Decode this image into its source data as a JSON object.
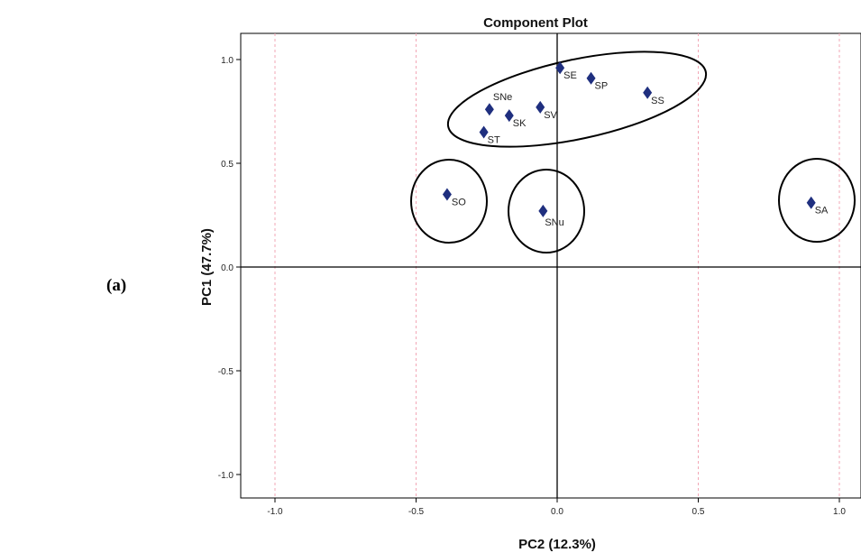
{
  "panel_label": "(a)",
  "chart_data": {
    "type": "scatter",
    "title": "Component Plot",
    "xlabel": "PC2 (12.3%)",
    "ylabel": "PC1 (47.7%)",
    "xlim": [
      -1.0,
      1.0
    ],
    "ylim": [
      -1.0,
      1.0
    ],
    "xticks": [
      "-1.0",
      "-0.5",
      "0.0",
      "0.5",
      "1.0"
    ],
    "yticks": [
      "1.0",
      "0.5",
      "0.0",
      "-0.5",
      "-1.0"
    ],
    "grid": "dashed-vertical",
    "marker_color": "#1f2f7f",
    "points": [
      {
        "label": "SE",
        "x": 0.01,
        "y": 0.96
      },
      {
        "label": "SP",
        "x": 0.12,
        "y": 0.91
      },
      {
        "label": "SS",
        "x": 0.32,
        "y": 0.84
      },
      {
        "label": "SNe",
        "x": -0.24,
        "y": 0.76
      },
      {
        "label": "SK",
        "x": -0.17,
        "y": 0.73
      },
      {
        "label": "SV",
        "x": -0.06,
        "y": 0.77
      },
      {
        "label": "ST",
        "x": -0.26,
        "y": 0.65
      },
      {
        "label": "SO",
        "x": -0.39,
        "y": 0.35
      },
      {
        "label": "SNu",
        "x": -0.05,
        "y": 0.27
      },
      {
        "label": "SA",
        "x": 0.9,
        "y": 0.31
      }
    ],
    "clusters": [
      {
        "members": [
          "SE",
          "SP",
          "SS",
          "SNe",
          "SK",
          "SV",
          "ST"
        ]
      },
      {
        "members": [
          "SO"
        ]
      },
      {
        "members": [
          "SNu"
        ]
      },
      {
        "members": [
          "SA"
        ]
      }
    ]
  }
}
